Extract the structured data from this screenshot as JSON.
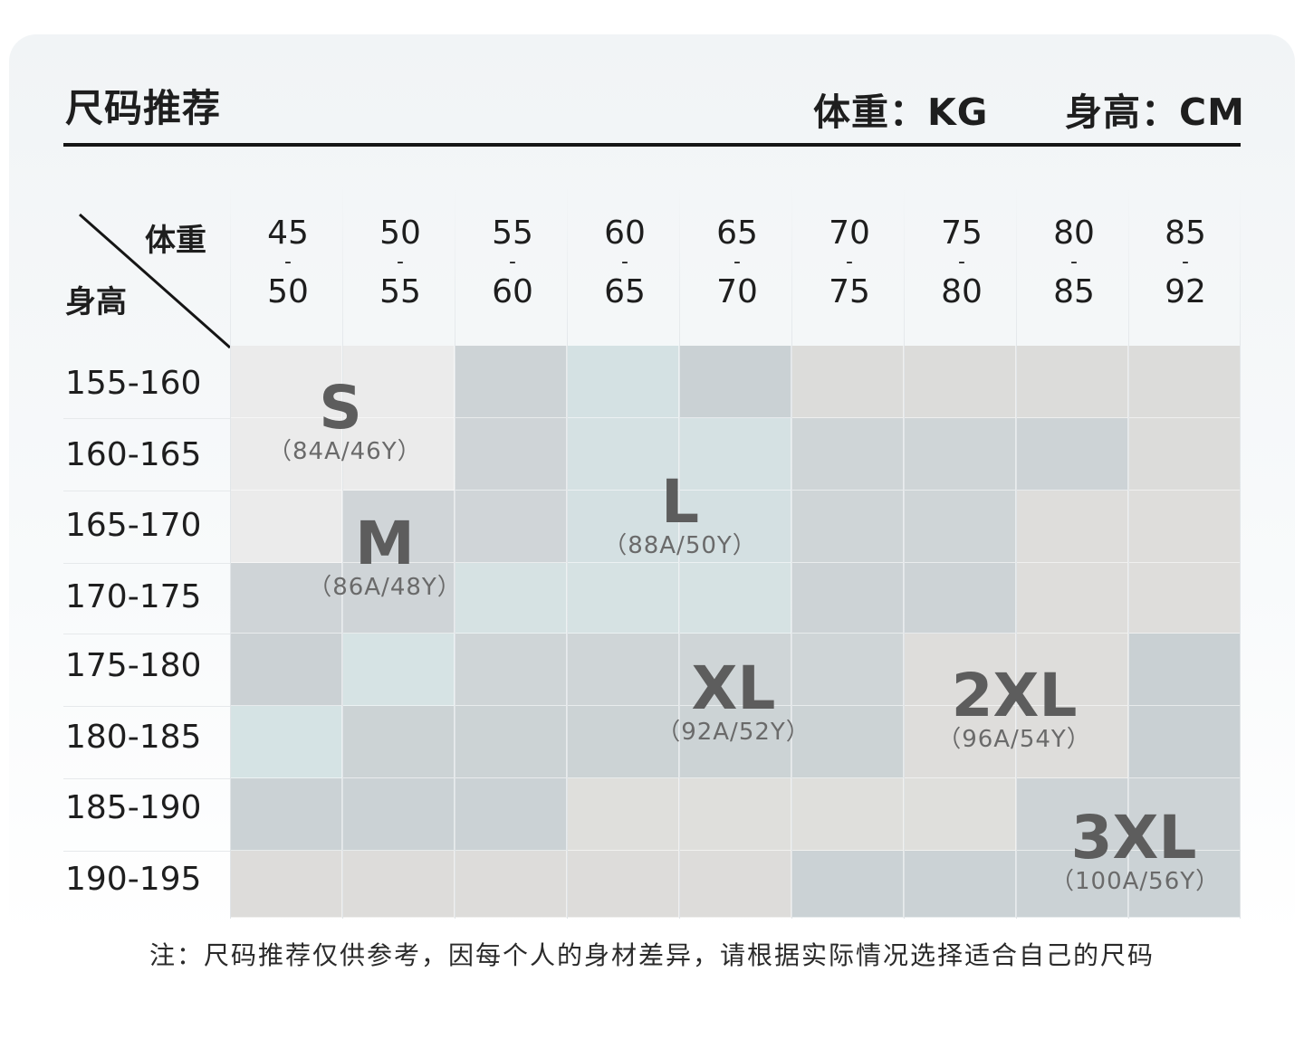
{
  "header": {
    "title": "尺码推荐",
    "weight_unit": "体重：KG",
    "height_unit": "身高：CM"
  },
  "corner": {
    "weight_label": "体重",
    "height_label": "身高"
  },
  "weight_columns": [
    {
      "from": "45",
      "sep": "-",
      "to": "50"
    },
    {
      "from": "50",
      "sep": "-",
      "to": "55"
    },
    {
      "from": "55",
      "sep": "-",
      "to": "60"
    },
    {
      "from": "60",
      "sep": "-",
      "to": "65"
    },
    {
      "from": "65",
      "sep": "-",
      "to": "70"
    },
    {
      "from": "70",
      "sep": "-",
      "to": "75"
    },
    {
      "from": "75",
      "sep": "-",
      "to": "80"
    },
    {
      "from": "80",
      "sep": "-",
      "to": "85"
    },
    {
      "from": "85",
      "sep": "-",
      "to": "92"
    }
  ],
  "height_rows": [
    "155-160",
    "160-165",
    "165-170",
    "170-175",
    "175-180",
    "180-185",
    "185-190",
    "190-195"
  ],
  "sizes": [
    {
      "label": "S",
      "code": "（84A/46Y）",
      "color": "#ebebeb"
    },
    {
      "label": "M",
      "code": "（86A/48Y）",
      "color": "#d0d5d8"
    },
    {
      "label": "L",
      "code": "（88A/50Y）",
      "color": "#d3e0e2"
    },
    {
      "label": "XL",
      "code": "（92A/52Y）",
      "color": "#cdd4d6"
    },
    {
      "label": "2XL",
      "code": "（96A/54Y）",
      "color": "#dddddb"
    },
    {
      "label": "3XL",
      "code": "（100A/56Y）",
      "color": "#ccd2d4"
    }
  ],
  "cell_colors": [
    [
      "#ebebeb",
      "#ebebeb",
      "#cdd3d6",
      "#d4e1e3",
      "#cad1d4",
      "#dcdcda",
      "#dcdcda",
      "#dcdcda",
      "#dcdcda"
    ],
    [
      "#ebebeb",
      "#ebebeb",
      "#cfd4d7",
      "#d5e1e3",
      "#d5e1e3",
      "#cfd5d7",
      "#cfd5d7",
      "#cdd3d6",
      "#dcdcda"
    ],
    [
      "#ebebeb",
      "#d0d5d8",
      "#d0d5d8",
      "#d4e0e2",
      "#d4e0e2",
      "#cfd5d7",
      "#cfd5d7",
      "#dedddb",
      "#dedddb"
    ],
    [
      "#cfd4d7",
      "#cfd4d7",
      "#d6e2e3",
      "#d6e2e3",
      "#d6e2e3",
      "#cdd3d6",
      "#cdd3d6",
      "#dedddb",
      "#dedddb"
    ],
    [
      "#cbd1d4",
      "#d6e3e4",
      "#cfd5d7",
      "#cfd5d7",
      "#cfd5d7",
      "#cfd5d7",
      "#dedddb",
      "#dedddb",
      "#c9d0d3"
    ],
    [
      "#d5e3e4",
      "#ccd3d5",
      "#ccd3d5",
      "#ccd3d5",
      "#ccd3d5",
      "#ccd3d5",
      "#dedddb",
      "#dedddb",
      "#c9d0d3"
    ],
    [
      "#cbd2d5",
      "#cbd2d5",
      "#cbd2d5",
      "#dfdfdc",
      "#dfdfdc",
      "#dfdfdc",
      "#dfdfdc",
      "#cdd3d6",
      "#cdd3d6"
    ],
    [
      "#dddcda",
      "#dddcda",
      "#dddcda",
      "#dddcda",
      "#dddcda",
      "#cbd2d5",
      "#cbd2d5",
      "#cbd2d5",
      "#cbd2d5"
    ]
  ],
  "note": "注：尺码推荐仅供参考，因每个人的身材差异，请根据实际情况选择适合自己的尺码"
}
